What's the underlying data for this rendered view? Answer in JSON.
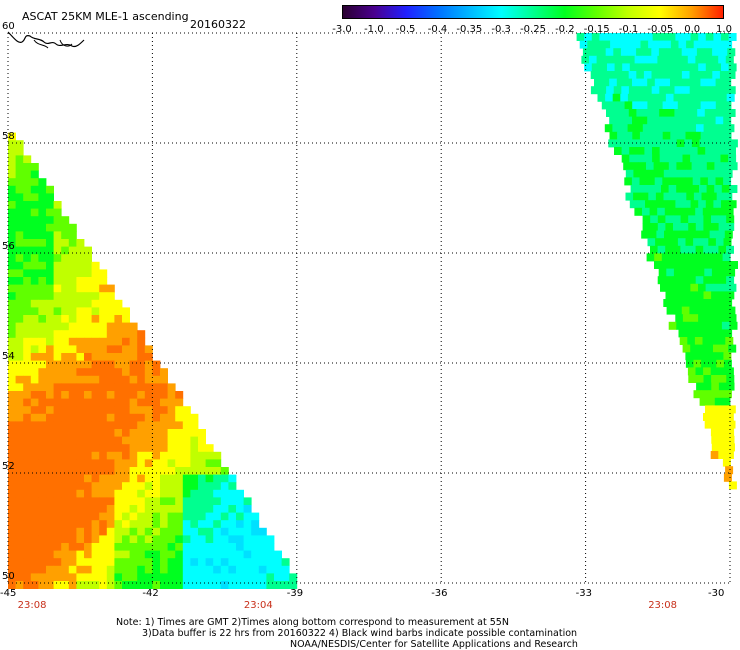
{
  "header": {
    "title": "ASCAT 25KM MLE-1 ascending",
    "date": "20160322"
  },
  "colorbar": {
    "labels": [
      "-3.0",
      "-1.0",
      "-0.5",
      "-0.4",
      "-0.35",
      "-0.3",
      "-0.25",
      "-0.2",
      "-0.15",
      "-0.1",
      "-0.05",
      "0.0",
      "1.0"
    ],
    "colors": [
      "#2a0030",
      "#4a0090",
      "#2020ff",
      "#0070ff",
      "#00b8ff",
      "#00ffff",
      "#00ff90",
      "#00ff20",
      "#60ff00",
      "#c0ff00",
      "#ffff00",
      "#ffa000",
      "#ff2000"
    ]
  },
  "map": {
    "lon_labels": [
      "-45",
      "-42",
      "-39",
      "-36",
      "-33",
      "-30"
    ],
    "lat_labels": [
      "60",
      "58",
      "56",
      "54",
      "52",
      "50"
    ],
    "time_labels": [
      "23:08",
      "23:04",
      "23:08"
    ]
  },
  "chart_data": {
    "type": "heatmap",
    "title": "ASCAT 25KM MLE-1 ascending",
    "xlim": [
      -45,
      -30
    ],
    "ylim": [
      50,
      60
    ],
    "grid": true,
    "swaths": [
      {
        "region": "western swath",
        "lon_range": [
          -45,
          -39
        ],
        "lat_range": [
          50,
          58.5
        ],
        "typical_values": "-0.25 to 0.0"
      },
      {
        "region": "eastern swath",
        "lon_range": [
          -33,
          -30
        ],
        "lat_range": [
          51.6,
          60
        ],
        "typical_values": "-0.35 to -0.05"
      }
    ]
  },
  "notes": {
    "line1": "Note: 1) Times are GMT 2)Times along bottom correspond to measurement at 55N",
    "line2": "3)Data buffer is 22 hrs from 20160322 4) Black wind barbs indicate possible contamination",
    "line3": "NOAA/NESDIS/Center for Satellite Applications and Research"
  }
}
